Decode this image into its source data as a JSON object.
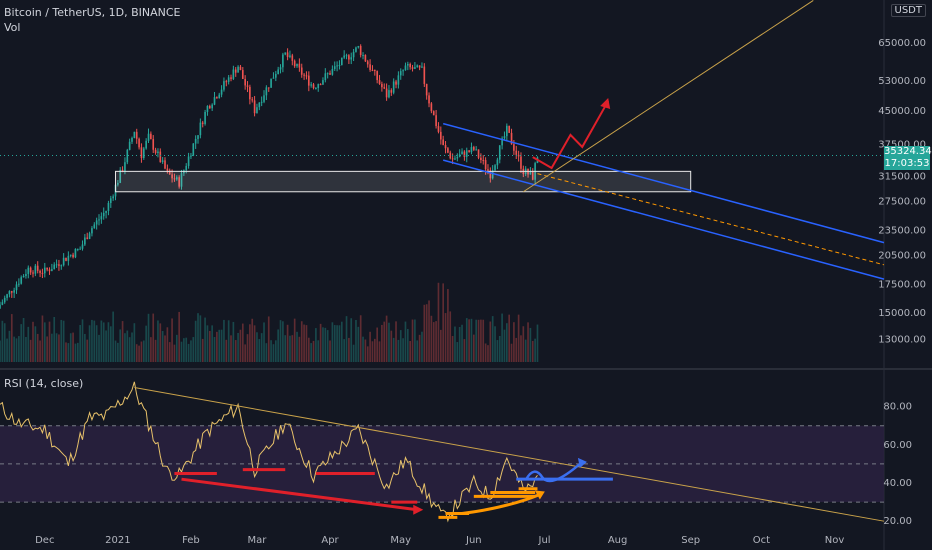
{
  "header": {
    "title": "Bitcoin / TetherUS, 1D, BINANCE",
    "volume_label": "Vol",
    "currency_badge": "USDT",
    "rsi_label": "RSI (14, close)"
  },
  "last_price": {
    "price": "35324.34",
    "countdown": "17:03:53",
    "value": 35324.34
  },
  "colors": {
    "background": "#131722",
    "up": "#26a69a",
    "down": "#ef5350",
    "channel": "#2962ff",
    "trend": "#c9a24a",
    "rsi_band": "#2a2140",
    "arrow_red": "#e0202a",
    "arrow_orange": "#ff9800",
    "arrow_blue": "#3a6ff0"
  },
  "chart_data": [
    {
      "type": "candlestick",
      "title": "Bitcoin / TetherUS, 1D, BINANCE",
      "scale": "log",
      "ylim": [
        11500,
        80000
      ],
      "y_ticks": [
        "65000.00",
        "53000.00",
        "45000.00",
        "37500.00",
        "31500.00",
        "27500.00",
        "23500.00",
        "20500.00",
        "17500.00",
        "15000.00",
        "13000.00"
      ],
      "y_tick_values": [
        65000,
        53000,
        45000,
        37500,
        31500,
        27500,
        23500,
        20500,
        17500,
        15000,
        13000
      ],
      "x_ticks": [
        "Dec",
        "2021",
        "Feb",
        "Mar",
        "Apr",
        "May",
        "Jun",
        "Jul",
        "Aug",
        "Sep",
        "Oct",
        "Nov"
      ],
      "x_tick_dates": [
        "2020-12-01",
        "2021-01-01",
        "2021-02-01",
        "2021-03-01",
        "2021-04-01",
        "2021-05-01",
        "2021-06-01",
        "2021-07-01",
        "2021-08-01",
        "2021-09-01",
        "2021-10-01",
        "2021-11-01"
      ],
      "x_range": [
        "2020-11-12",
        "2021-11-22"
      ],
      "close_series": [
        {
          "date": "2020-11-12",
          "close": 15700
        },
        {
          "date": "2020-11-24",
          "close": 19100
        },
        {
          "date": "2020-12-01",
          "close": 18800
        },
        {
          "date": "2020-12-16",
          "close": 21300
        },
        {
          "date": "2020-12-20",
          "close": 23500
        },
        {
          "date": "2020-12-27",
          "close": 26200
        },
        {
          "date": "2021-01-03",
          "close": 33000
        },
        {
          "date": "2021-01-08",
          "close": 40500
        },
        {
          "date": "2021-01-11",
          "close": 35500
        },
        {
          "date": "2021-01-14",
          "close": 39000
        },
        {
          "date": "2021-01-22",
          "close": 32000
        },
        {
          "date": "2021-01-27",
          "close": 30500
        },
        {
          "date": "2021-02-08",
          "close": 46000
        },
        {
          "date": "2021-02-21",
          "close": 57500
        },
        {
          "date": "2021-02-28",
          "close": 45200
        },
        {
          "date": "2021-03-13",
          "close": 61200
        },
        {
          "date": "2021-03-25",
          "close": 51300
        },
        {
          "date": "2021-04-13",
          "close": 63500
        },
        {
          "date": "2021-04-25",
          "close": 49000
        },
        {
          "date": "2021-05-03",
          "close": 57000
        },
        {
          "date": "2021-05-10",
          "close": 56000
        },
        {
          "date": "2021-05-12",
          "close": 49500
        },
        {
          "date": "2021-05-19",
          "close": 37000
        },
        {
          "date": "2021-05-23",
          "close": 34700
        },
        {
          "date": "2021-06-01",
          "close": 36500
        },
        {
          "date": "2021-06-08",
          "close": 32000
        },
        {
          "date": "2021-06-15",
          "close": 40500
        },
        {
          "date": "2021-06-22",
          "close": 32500
        },
        {
          "date": "2021-06-26",
          "close": 31500
        },
        {
          "date": "2021-06-28",
          "close": 35324
        }
      ],
      "annotations": [
        {
          "type": "support_zone",
          "from": "2020-12-31",
          "to": "2021-09-01",
          "low": 29000,
          "high": 32400
        },
        {
          "type": "parallel_channel",
          "points": [
            [
              "2021-05-19",
              42000
            ],
            [
              "2021-11-22",
              22000
            ]
          ],
          "width_price": 0.82
        },
        {
          "type": "dashed_midline",
          "points": [
            [
              "2021-06-28",
              32000
            ],
            [
              "2021-11-22",
              19500
            ]
          ]
        },
        {
          "type": "trend_line",
          "points": [
            [
              "2021-06-22",
              29000
            ],
            [
              "2021-10-23",
              82000
            ]
          ]
        },
        {
          "type": "projection_arrow",
          "color": "red",
          "points": [
            [
              "2021-06-26",
              35000
            ],
            [
              "2021-07-04",
              33000
            ],
            [
              "2021-07-12",
              39500
            ],
            [
              "2021-07-17",
              37000
            ],
            [
              "2021-07-28",
              47500
            ]
          ]
        }
      ]
    },
    {
      "type": "line",
      "title": "RSI (14, close)",
      "ylim": [
        18,
        95
      ],
      "y_ticks": [
        "80.00",
        "60.00",
        "40.00",
        "20.00"
      ],
      "y_tick_values": [
        80,
        60,
        40,
        20
      ],
      "levels": [
        70,
        50,
        30
      ],
      "x_range": [
        "2020-11-12",
        "2021-11-22"
      ],
      "series": [
        {
          "date": "2020-11-12",
          "rsi": 80
        },
        {
          "date": "2020-11-20",
          "rsi": 71
        },
        {
          "date": "2020-12-01",
          "rsi": 68
        },
        {
          "date": "2020-12-11",
          "rsi": 50
        },
        {
          "date": "2020-12-20",
          "rsi": 74
        },
        {
          "date": "2020-12-27",
          "rsi": 75
        },
        {
          "date": "2021-01-08",
          "rsi": 90
        },
        {
          "date": "2021-01-22",
          "rsi": 46
        },
        {
          "date": "2021-01-27",
          "rsi": 44
        },
        {
          "date": "2021-02-08",
          "rsi": 67
        },
        {
          "date": "2021-02-21",
          "rsi": 80
        },
        {
          "date": "2021-02-28",
          "rsi": 47
        },
        {
          "date": "2021-03-13",
          "rsi": 72
        },
        {
          "date": "2021-03-25",
          "rsi": 44
        },
        {
          "date": "2021-04-13",
          "rsi": 68
        },
        {
          "date": "2021-04-25",
          "rsi": 38
        },
        {
          "date": "2021-05-03",
          "rsi": 52
        },
        {
          "date": "2021-05-12",
          "rsi": 34
        },
        {
          "date": "2021-05-19",
          "rsi": 22
        },
        {
          "date": "2021-05-23",
          "rsi": 26
        },
        {
          "date": "2021-06-01",
          "rsi": 40
        },
        {
          "date": "2021-06-08",
          "rsi": 33
        },
        {
          "date": "2021-06-15",
          "rsi": 53
        },
        {
          "date": "2021-06-22",
          "rsi": 36
        },
        {
          "date": "2021-06-26",
          "rsi": 38
        },
        {
          "date": "2021-06-28",
          "rsi": 44
        }
      ],
      "annotations": [
        {
          "type": "trend_line",
          "points": [
            [
              "2021-01-08",
              90
            ],
            [
              "2021-11-22",
              20
            ]
          ]
        },
        {
          "type": "support_marks",
          "color": "red",
          "level_values": [
            45,
            47,
            45,
            30
          ]
        },
        {
          "type": "descending_arrow",
          "color": "red",
          "points": [
            [
              "2021-01-28",
              42
            ],
            [
              "2021-05-08",
              26
            ]
          ]
        },
        {
          "type": "support_marks",
          "color": "orange",
          "level_values": [
            22,
            24,
            33,
            35,
            37
          ]
        },
        {
          "type": "ascending_arrow",
          "color": "orange",
          "points": [
            [
              "2021-05-27",
              24
            ],
            [
              "2021-06-29",
              34
            ]
          ]
        },
        {
          "type": "wave_arrow",
          "color": "blue",
          "points": [
            [
              "2021-06-19",
              42
            ],
            [
              "2021-07-16",
              50
            ]
          ]
        }
      ]
    }
  ]
}
